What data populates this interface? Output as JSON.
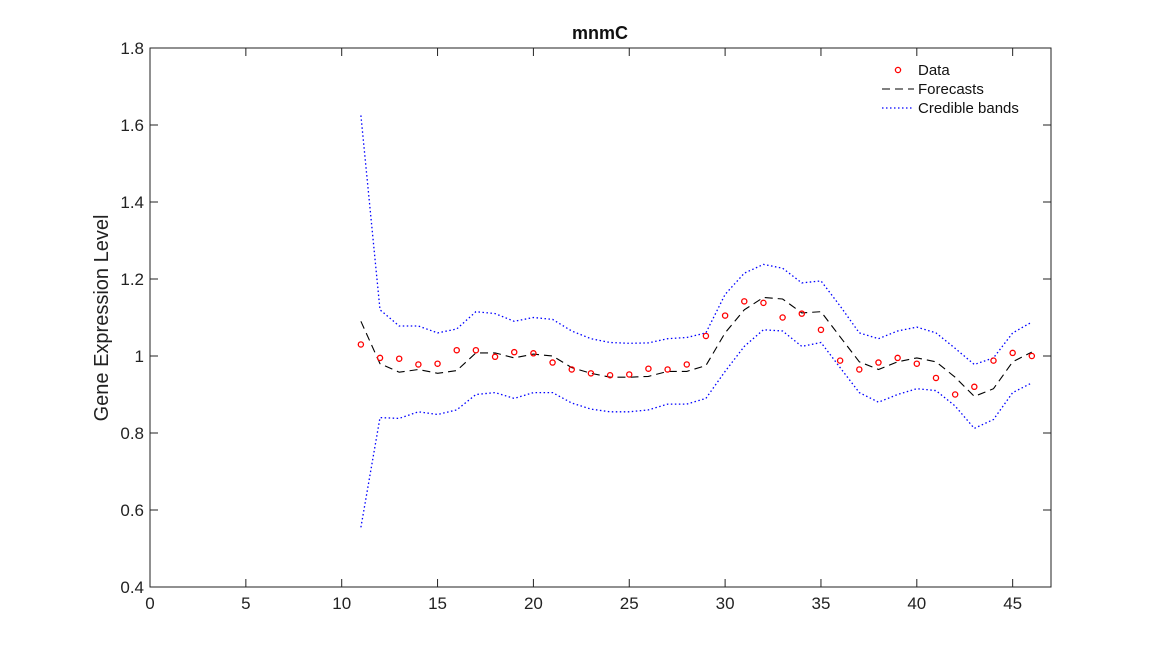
{
  "chart_data": {
    "type": "line",
    "title": "mnmC",
    "xlabel": "",
    "ylabel": "Gene Expression Level",
    "xlim": [
      0,
      47
    ],
    "ylim": [
      0.4,
      1.8
    ],
    "xticks": [
      0,
      5,
      10,
      15,
      20,
      25,
      30,
      35,
      40,
      45
    ],
    "yticks": [
      0.4,
      0.6,
      0.8,
      1,
      1.2,
      1.4,
      1.6,
      1.8
    ],
    "xtick_labels": [
      "0",
      "5",
      "10",
      "15",
      "20",
      "25",
      "30",
      "35",
      "40",
      "45"
    ],
    "ytick_labels": [
      "0.4",
      "0.6",
      "0.8",
      "1",
      "1.2",
      "1.4",
      "1.6",
      "1.8"
    ],
    "grid": false,
    "legend_position": "top-right",
    "x": [
      11,
      12,
      13,
      14,
      15,
      16,
      17,
      18,
      19,
      20,
      21,
      22,
      23,
      24,
      25,
      26,
      27,
      28,
      29,
      30,
      31,
      32,
      33,
      34,
      35,
      36,
      37,
      38,
      39,
      40,
      41,
      42,
      43,
      44,
      45,
      46
    ],
    "series": [
      {
        "name": "Data",
        "style": "markers",
        "color": "#ff0000",
        "values": [
          1.03,
          0.995,
          0.993,
          0.978,
          0.98,
          1.015,
          1.015,
          0.998,
          1.01,
          1.007,
          0.983,
          0.965,
          0.955,
          0.95,
          0.952,
          0.967,
          0.965,
          0.978,
          1.052,
          1.105,
          1.142,
          1.138,
          1.1,
          1.11,
          1.068,
          0.988,
          0.965,
          0.983,
          0.995,
          0.98,
          0.943,
          0.9,
          0.92,
          0.988,
          1.008,
          1.0
        ]
      },
      {
        "name": "Forecasts",
        "style": "dashed",
        "color": "#000000",
        "values": [
          1.09,
          0.98,
          0.958,
          0.965,
          0.955,
          0.962,
          1.008,
          1.008,
          0.995,
          1.005,
          1.0,
          0.97,
          0.955,
          0.945,
          0.945,
          0.947,
          0.96,
          0.96,
          0.975,
          1.06,
          1.12,
          1.152,
          1.148,
          1.112,
          1.115,
          1.05,
          0.985,
          0.965,
          0.985,
          0.995,
          0.985,
          0.945,
          0.895,
          0.915,
          0.985,
          1.01
        ]
      },
      {
        "name": "Credible bands",
        "style": "dotted",
        "color": "#0000ff",
        "upper": [
          1.625,
          1.12,
          1.078,
          1.078,
          1.06,
          1.07,
          1.115,
          1.11,
          1.09,
          1.1,
          1.095,
          1.065,
          1.045,
          1.035,
          1.033,
          1.034,
          1.045,
          1.048,
          1.06,
          1.16,
          1.215,
          1.238,
          1.228,
          1.19,
          1.195,
          1.13,
          1.06,
          1.045,
          1.065,
          1.075,
          1.06,
          1.02,
          0.978,
          0.995,
          1.06,
          1.088
        ],
        "lower": [
          0.555,
          0.84,
          0.838,
          0.855,
          0.848,
          0.86,
          0.9,
          0.905,
          0.89,
          0.905,
          0.905,
          0.878,
          0.862,
          0.855,
          0.855,
          0.86,
          0.875,
          0.875,
          0.89,
          0.96,
          1.025,
          1.068,
          1.065,
          1.025,
          1.035,
          0.97,
          0.905,
          0.88,
          0.9,
          0.915,
          0.91,
          0.87,
          0.812,
          0.835,
          0.905,
          0.93
        ]
      }
    ]
  },
  "colors": {
    "axis": "#222222",
    "data": "#ff0000",
    "forecast": "#000000",
    "bands": "#0000ff"
  }
}
